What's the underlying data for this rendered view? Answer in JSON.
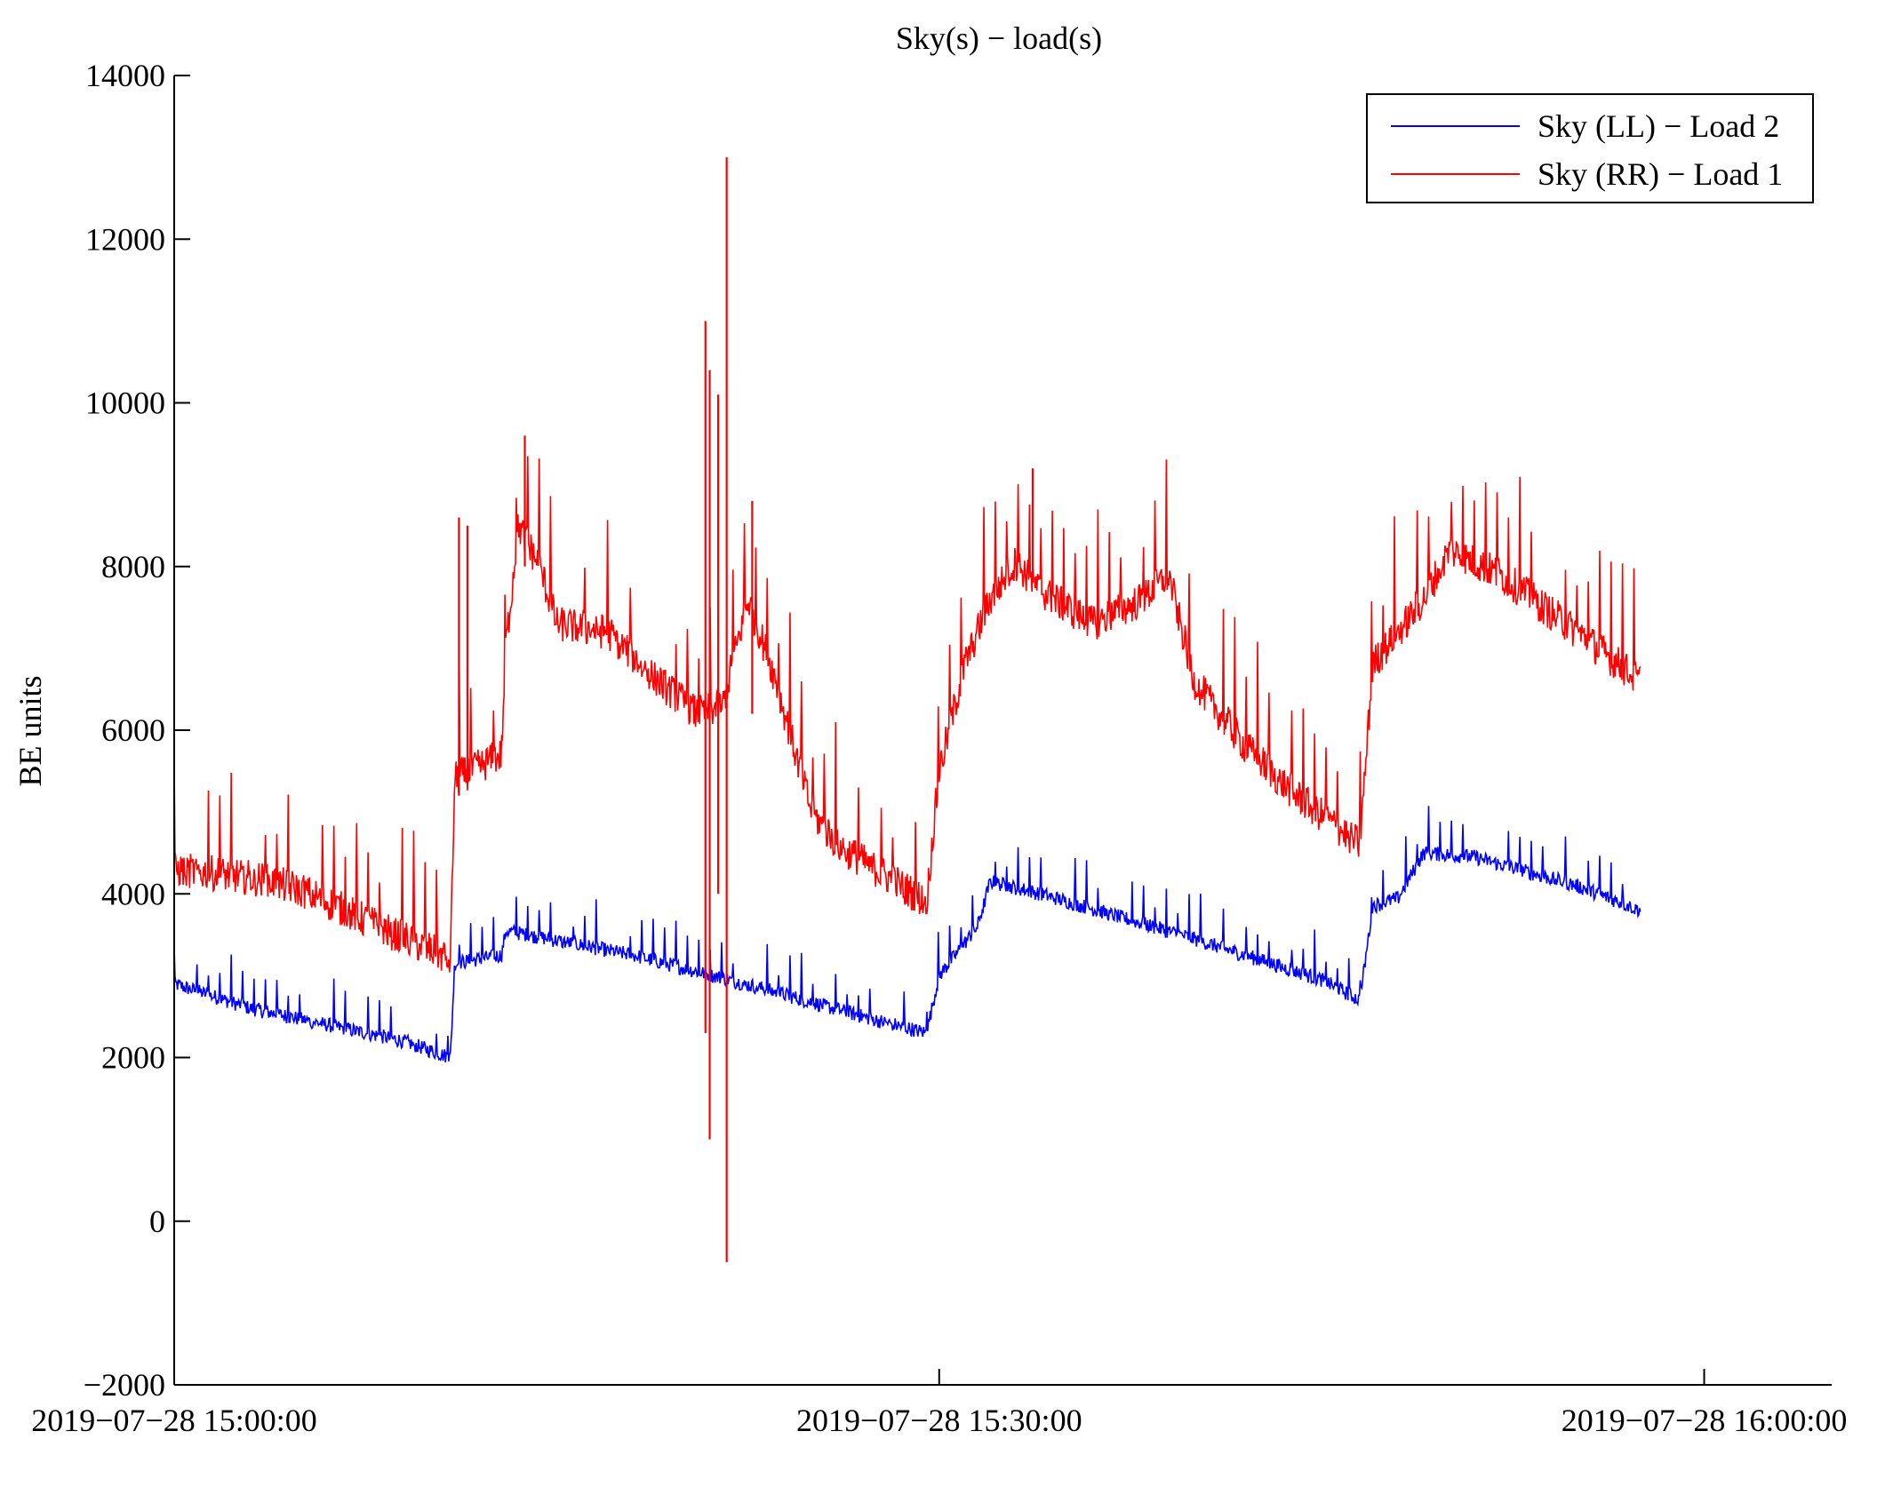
{
  "chart_data": {
    "type": "line",
    "title": "Sky(s) − load(s)",
    "xlabel": "",
    "ylabel": "BE units",
    "xlim": [
      "2019−07−28 15:00:00",
      "2019−07−28 16:05:00"
    ],
    "ylim": [
      -2000,
      14000
    ],
    "yticks": [
      -2000,
      0,
      2000,
      4000,
      6000,
      8000,
      10000,
      12000,
      14000
    ],
    "ytick_labels": [
      "−2000",
      "0",
      "2000",
      "4000",
      "6000",
      "8000",
      "10000",
      "12000",
      "14000"
    ],
    "xticks_min": [
      0,
      30,
      60
    ],
    "xtick_labels": [
      "2019−07−28 15:00:00",
      "2019−07−28 15:30:00",
      "2019−07−28 16:00:00"
    ],
    "grid": false,
    "legend_position": "top-right",
    "series": [
      {
        "name": "Sky (LL) − Load 2",
        "color": "#0000ff",
        "noise": 90,
        "spike": 400,
        "points": [
          [
            "15:00:00",
            2900
          ],
          [
            "15:03:00",
            2600
          ],
          [
            "15:06:00",
            2400
          ],
          [
            "15:09:00",
            2200
          ],
          [
            "15:10:50",
            2000
          ],
          [
            "15:11:00",
            3150
          ],
          [
            "15:12:50",
            3250
          ],
          [
            "15:13:00",
            3550
          ],
          [
            "15:18:00",
            3250
          ],
          [
            "15:23:00",
            2850
          ],
          [
            "15:27:00",
            2500
          ],
          [
            "15:29:30",
            2300
          ],
          [
            "15:30:00",
            3000
          ],
          [
            "15:31:30",
            3600
          ],
          [
            "15:32:00",
            4150
          ],
          [
            "15:34:00",
            4000
          ],
          [
            "15:40:00",
            3450
          ],
          [
            "15:45:00",
            2950
          ],
          [
            "15:46:30",
            2700
          ],
          [
            "15:47:00",
            3850
          ],
          [
            "15:48:00",
            3950
          ],
          [
            "15:49:00",
            4500
          ],
          [
            "15:51:00",
            4450
          ],
          [
            "15:55:00",
            4100
          ],
          [
            "15:57:30",
            3800
          ]
        ]
      },
      {
        "name": "Sky (RR) − Load 1",
        "color": "#ff0000",
        "noise": 220,
        "spike": 1000,
        "points": [
          [
            "15:00:00",
            4300
          ],
          [
            "15:03:00",
            4200
          ],
          [
            "15:05:00",
            4050
          ],
          [
            "15:08:00",
            3600
          ],
          [
            "15:10:50",
            3200
          ],
          [
            "15:11:00",
            5400
          ],
          [
            "15:12:50",
            5700
          ],
          [
            "15:13:00",
            7000
          ],
          [
            "15:13:30",
            8500
          ],
          [
            "15:14:20",
            8000
          ],
          [
            "15:15:00",
            7300
          ],
          [
            "15:17:00",
            7200
          ],
          [
            "15:19:00",
            6600
          ],
          [
            "15:20:30",
            6200
          ],
          [
            "15:21:30",
            6300
          ],
          [
            "15:22:30",
            7600
          ],
          [
            "15:23:30",
            6700
          ],
          [
            "15:25:00",
            5000
          ],
          [
            "15:26:00",
            4600
          ],
          [
            "15:28:00",
            4200
          ],
          [
            "15:29:30",
            3900
          ],
          [
            "15:30:00",
            5500
          ],
          [
            "15:31:00",
            6800
          ],
          [
            "15:32:00",
            7600
          ],
          [
            "15:33:00",
            8050
          ],
          [
            "15:34:00",
            7700
          ],
          [
            "15:36:00",
            7300
          ],
          [
            "15:38:00",
            7600
          ],
          [
            "15:39:00",
            7900
          ],
          [
            "15:40:00",
            6600
          ],
          [
            "15:42:00",
            5800
          ],
          [
            "15:44:00",
            5200
          ],
          [
            "15:46:30",
            4600
          ],
          [
            "15:47:00",
            6800
          ],
          [
            "15:49:00",
            7600
          ],
          [
            "15:50:00",
            8200
          ],
          [
            "15:52:00",
            7900
          ],
          [
            "15:55:00",
            7200
          ],
          [
            "15:57:30",
            6600
          ]
        ],
        "outliers": [
          {
            "time": "15:11:10",
            "low": 5200,
            "high": 8600
          },
          {
            "time": "15:11:30",
            "low": 5400,
            "high": 8500
          },
          {
            "time": "15:13:45",
            "low": 8000,
            "high": 9600
          },
          {
            "time": "15:20:50",
            "low": 2300,
            "high": 11000
          },
          {
            "time": "15:21:00",
            "low": 1000,
            "high": 10400
          },
          {
            "time": "15:21:20",
            "low": 4000,
            "high": 10100
          },
          {
            "time": "15:21:40",
            "low": -500,
            "high": 13000
          },
          {
            "time": "15:22:40",
            "low": 6200,
            "high": 8800
          },
          {
            "time": "15:33:40",
            "low": 7800,
            "high": 9200
          }
        ]
      }
    ]
  }
}
